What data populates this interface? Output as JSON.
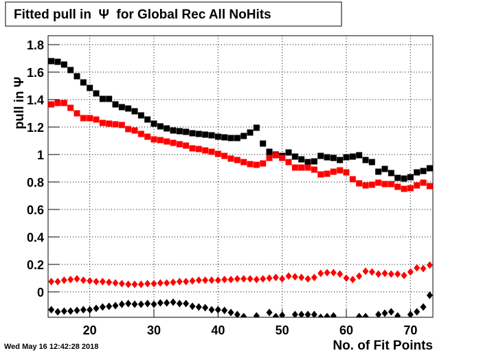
{
  "chart_data": {
    "type": "scatter",
    "title": "Fitted pull in  Ψ  for Global Rec All NoHits",
    "x_label": "No. of Fit Points",
    "y_label": "pull in Ψ",
    "annotation": "Wed May 16 12:42:28 2018",
    "xlim": [
      13.5,
      73.5
    ],
    "ylim": [
      -0.185,
      1.865
    ],
    "xticks": [
      20,
      30,
      40,
      50,
      60,
      70
    ],
    "yticks": [
      0,
      0.2,
      0.4,
      0.6,
      0.8,
      1,
      1.2,
      1.4,
      1.6,
      1.8
    ],
    "grid": true,
    "x": [
      14,
      15,
      16,
      17,
      18,
      19,
      20,
      21,
      22,
      23,
      24,
      25,
      26,
      27,
      28,
      29,
      30,
      31,
      32,
      33,
      34,
      35,
      36,
      37,
      38,
      39,
      40,
      41,
      42,
      43,
      44,
      45,
      46,
      47,
      48,
      49,
      50,
      51,
      52,
      53,
      54,
      55,
      56,
      57,
      58,
      59,
      60,
      61,
      62,
      63,
      64,
      65,
      66,
      67,
      68,
      69,
      70,
      71,
      72,
      73
    ],
    "series": [
      {
        "color": "#000000",
        "marker": "square",
        "values": [
          1.68,
          1.675,
          1.655,
          1.615,
          1.57,
          1.525,
          1.485,
          1.445,
          1.405,
          1.405,
          1.365,
          1.345,
          1.335,
          1.315,
          1.285,
          1.255,
          1.225,
          1.205,
          1.19,
          1.175,
          1.17,
          1.165,
          1.155,
          1.15,
          1.145,
          1.14,
          1.13,
          1.125,
          1.12,
          1.12,
          1.135,
          1.16,
          1.195,
          1.08,
          1.02,
          1.0,
          0.99,
          1.015,
          0.985,
          0.965,
          0.945,
          0.95,
          0.99,
          0.98,
          0.975,
          0.96,
          0.98,
          0.985,
          0.995,
          0.96,
          0.945,
          0.875,
          0.895,
          0.865,
          0.83,
          0.825,
          0.835,
          0.87,
          0.88,
          0.9
        ]
      },
      {
        "color": "#ff0000",
        "marker": "square",
        "values": [
          1.365,
          1.375,
          1.375,
          1.34,
          1.3,
          1.265,
          1.265,
          1.255,
          1.23,
          1.225,
          1.22,
          1.215,
          1.185,
          1.175,
          1.15,
          1.13,
          1.11,
          1.105,
          1.095,
          1.085,
          1.075,
          1.065,
          1.045,
          1.04,
          1.03,
          1.02,
          1.005,
          0.99,
          0.97,
          0.96,
          0.945,
          0.93,
          0.925,
          0.935,
          0.975,
          0.995,
          0.975,
          0.945,
          0.905,
          0.905,
          0.905,
          0.89,
          0.855,
          0.86,
          0.875,
          0.885,
          0.87,
          0.82,
          0.79,
          0.775,
          0.78,
          0.795,
          0.785,
          0.785,
          0.765,
          0.75,
          0.755,
          0.775,
          0.795,
          0.77
        ]
      },
      {
        "color": "#ff0000",
        "marker": "diamond",
        "values": [
          0.075,
          0.075,
          0.085,
          0.09,
          0.095,
          0.085,
          0.08,
          0.075,
          0.075,
          0.07,
          0.065,
          0.06,
          0.055,
          0.055,
          0.055,
          0.06,
          0.06,
          0.065,
          0.065,
          0.07,
          0.075,
          0.075,
          0.08,
          0.085,
          0.085,
          0.085,
          0.085,
          0.09,
          0.09,
          0.095,
          0.095,
          0.095,
          0.09,
          0.095,
          0.1,
          0.105,
          0.095,
          0.115,
          0.11,
          0.105,
          0.095,
          0.105,
          0.135,
          0.14,
          0.14,
          0.13,
          0.1,
          0.09,
          0.115,
          0.15,
          0.145,
          0.13,
          0.135,
          0.13,
          0.13,
          0.12,
          0.145,
          0.175,
          0.17,
          0.195
        ]
      },
      {
        "color": "#000000",
        "marker": "diamond",
        "values": [
          -0.13,
          -0.145,
          -0.14,
          -0.14,
          -0.135,
          -0.13,
          -0.13,
          -0.12,
          -0.11,
          -0.105,
          -0.1,
          -0.09,
          -0.085,
          -0.09,
          -0.09,
          -0.085,
          -0.09,
          -0.08,
          -0.08,
          -0.075,
          -0.085,
          -0.085,
          -0.105,
          -0.11,
          -0.115,
          -0.13,
          -0.13,
          -0.135,
          -0.15,
          -0.165,
          -0.18,
          null,
          -0.175,
          null,
          -0.15,
          -0.18,
          -0.17,
          null,
          -0.165,
          -0.165,
          -0.165,
          -0.165,
          -0.185,
          -0.18,
          -0.175,
          null,
          null,
          null,
          -0.18,
          -0.18,
          null,
          -0.165,
          -0.155,
          -0.145,
          -0.175,
          null,
          -0.165,
          -0.145,
          -0.11,
          -0.025
        ]
      }
    ]
  }
}
